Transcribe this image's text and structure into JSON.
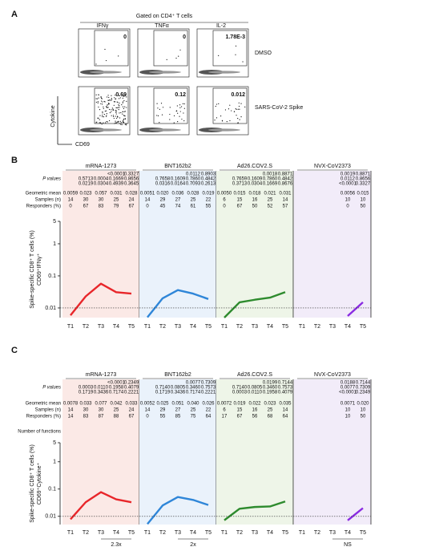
{
  "panel_a": {
    "letter": "A",
    "gate_title": "Gated on CD4⁺ T cells",
    "columns": [
      "IFNγ",
      "TNFα",
      "IL-2"
    ],
    "rows": [
      {
        "label": "DMSO",
        "values": [
          "0",
          "0",
          "1.78E-3"
        ]
      },
      {
        "label": "SARS-CoV-2 Spike",
        "values": [
          "0.69",
          "0.12",
          "0.012"
        ]
      }
    ],
    "y_axis_label": "Cytokine",
    "x_axis_label": "CD69"
  },
  "chart_data": [
    {
      "type": "line",
      "letter": "B",
      "categories": [
        "T1",
        "T2",
        "T3",
        "T4",
        "T5"
      ],
      "row_labels": {
        "p_values": "P values",
        "geometric_mean": "Geometric mean",
        "samples": "Samples (n)",
        "responders": "Responders (%)"
      },
      "p_value_colors": [
        "#6a2fd0",
        "#2e8b2e",
        "#d62728"
      ],
      "y_label": "Spike-specific CD8⁺ T cells (%)",
      "y_label_2": "CD69⁺IFNγ⁺",
      "log_scale": true,
      "ylim": [
        0.005,
        5
      ],
      "yticks": [
        0.01,
        0.1,
        1,
        5
      ],
      "reference_line": 0.01,
      "groups": [
        {
          "name": "mRNA-1273",
          "color": "#e8262a",
          "background": "#fbe9e6",
          "p_values": [
            [
              "<0.0001",
              "0.3327"
            ],
            [
              "0.5713",
              "0.0004",
              "0.1669",
              "0.8656"
            ],
            [
              "0.0219",
              "0.0304",
              "0.4939",
              "0.3645"
            ]
          ],
          "geometric_mean": [
            0.0059,
            0.023,
            0.057,
            0.031,
            0.028
          ],
          "geometric_mean_labels": [
            "0.0059",
            "0.023",
            "0.057",
            "0.031",
            "0.028"
          ],
          "samples": [
            14,
            30,
            30,
            25,
            24
          ],
          "responders": [
            0,
            67,
            83,
            79,
            67
          ]
        },
        {
          "name": "BNT162b2",
          "color": "#2f86d8",
          "background": "#eaf2fb",
          "p_values": [
            [
              "0.0112",
              "0.8903"
            ],
            [
              "0.7658",
              "0.1609",
              "0.7860",
              "0.4842"
            ],
            [
              "0.0316",
              "0.0164",
              "0.7093",
              "0.2613"
            ]
          ],
          "geometric_mean": [
            0.0051,
            0.02,
            0.036,
            0.028,
            0.019
          ],
          "geometric_mean_labels": [
            "0.0051",
            "0.020",
            "0.036",
            "0.028",
            "0.019"
          ],
          "samples": [
            14,
            29,
            27,
            25,
            22
          ],
          "responders": [
            0,
            45,
            74,
            61,
            55
          ]
        },
        {
          "name": "Ad26.COV2.S",
          "color": "#2e8b2e",
          "background": "#eef5e8",
          "p_values": [
            [
              "0.0018",
              "0.8871"
            ],
            [
              "0.7659",
              "0.1609",
              "0.7860",
              "0.4842"
            ],
            [
              "0.3713",
              "0.0304",
              "0.1669",
              "0.8676"
            ]
          ],
          "geometric_mean": [
            0.005,
            0.015,
            0.018,
            0.021,
            0.031
          ],
          "geometric_mean_labels": [
            "0.0050",
            "0.015",
            "0.018",
            "0.021",
            "0.031"
          ],
          "samples": [
            6,
            15,
            16,
            25,
            14
          ],
          "responders": [
            0,
            67,
            50,
            52,
            57
          ]
        },
        {
          "name": "NVX-CoV2373",
          "color": "#8a2be2",
          "background": "#f2ecf9",
          "p_values": [
            [
              "0.0019",
              "0.8871"
            ],
            [
              "0.0112",
              "0.8656"
            ],
            [
              "<0.0001",
              "0.3327"
            ]
          ],
          "geometric_mean": [
            null,
            null,
            null,
            0.0056,
            0.015
          ],
          "geometric_mean_labels": [
            null,
            null,
            null,
            "0.0056",
            "0.015"
          ],
          "samples": [
            null,
            null,
            null,
            10,
            10
          ],
          "responders": [
            null,
            null,
            null,
            0,
            50
          ]
        }
      ]
    },
    {
      "type": "line",
      "letter": "C",
      "categories": [
        "T1",
        "T2",
        "T3",
        "T4",
        "T5"
      ],
      "row_labels": {
        "p_values": "P values",
        "geometric_mean": "Geometric mean",
        "samples": "Samples (n)",
        "responders": "Responders (%)"
      },
      "functions_label": "Number of functions",
      "p_value_colors": [
        "#6a2fd0",
        "#2e8b2e",
        "#d62728"
      ],
      "y_label": "Spike-specific CD8⁺ T cells (%)",
      "y_label_2": "CD69⁺Cytokine⁺",
      "log_scale": true,
      "ylim": [
        0.005,
        5
      ],
      "yticks": [
        0.01,
        0.1,
        1,
        5
      ],
      "reference_line": 0.01,
      "groups": [
        {
          "name": "mRNA-1273",
          "color": "#e8262a",
          "background": "#fbe9e6",
          "p_values": [
            [
              "<0.0001",
              "0.2349"
            ],
            [
              "0.0003",
              "0.0110",
              "0.1958",
              "0.4079"
            ],
            [
              "0.1719",
              "0.3436",
              "0.7174",
              "0.2221"
            ]
          ],
          "geometric_mean": [
            0.0078,
            0.033,
            0.077,
            0.042,
            0.033
          ],
          "geometric_mean_labels": [
            "0.0078",
            "0.033",
            "0.077",
            "0.042",
            "0.033"
          ],
          "samples": [
            14,
            30,
            30,
            25,
            24
          ],
          "responders": [
            14,
            83,
            87,
            88,
            67
          ],
          "fold_change": "2.3x"
        },
        {
          "name": "BNT162b2",
          "color": "#2f86d8",
          "background": "#eaf2fb",
          "p_values": [
            [
              "0.0077",
              "0.7309"
            ],
            [
              "0.7140",
              "0.0805",
              "0.3460",
              "0.7573"
            ],
            [
              "0.1719",
              "0.3436",
              "0.7174",
              "0.2221"
            ]
          ],
          "geometric_mean": [
            0.0052,
            0.025,
            0.051,
            0.04,
            0.026
          ],
          "geometric_mean_labels": [
            "0.0052",
            "0.025",
            "0.051",
            "0.040",
            "0.026"
          ],
          "samples": [
            14,
            29,
            27,
            25,
            22
          ],
          "responders": [
            0,
            55,
            85,
            75,
            64
          ],
          "fold_change": "2x"
        },
        {
          "name": "Ad26.COV2.S",
          "color": "#2e8b2e",
          "background": "#eef5e8",
          "p_values": [
            [
              "0.0199",
              "0.7144"
            ],
            [
              "0.7140",
              "0.0805",
              "0.3460",
              "0.7573"
            ],
            [
              "0.0003",
              "0.0110",
              "0.1958",
              "0.4079"
            ]
          ],
          "geometric_mean": [
            0.0072,
            0.019,
            0.022,
            0.023,
            0.035
          ],
          "geometric_mean_labels": [
            "0.0072",
            "0.019",
            "0.022",
            "0.023",
            "0.035"
          ],
          "samples": [
            6,
            15,
            16,
            25,
            14
          ],
          "responders": [
            17,
            67,
            56,
            68,
            64
          ]
        },
        {
          "name": "NVX-CoV2373",
          "color": "#8a2be2",
          "background": "#f2ecf9",
          "p_values": [
            [
              "0.0188",
              "0.7144"
            ],
            [
              "0.0077",
              "0.7309"
            ],
            [
              "<0.0001",
              "0.2349"
            ]
          ],
          "geometric_mean": [
            null,
            null,
            null,
            0.0071,
            0.02
          ],
          "geometric_mean_labels": [
            null,
            null,
            null,
            "0.0071",
            "0.020"
          ],
          "samples": [
            null,
            null,
            null,
            10,
            10
          ],
          "responders": [
            null,
            null,
            null,
            10,
            50
          ],
          "fold_change": "NS"
        }
      ]
    }
  ]
}
